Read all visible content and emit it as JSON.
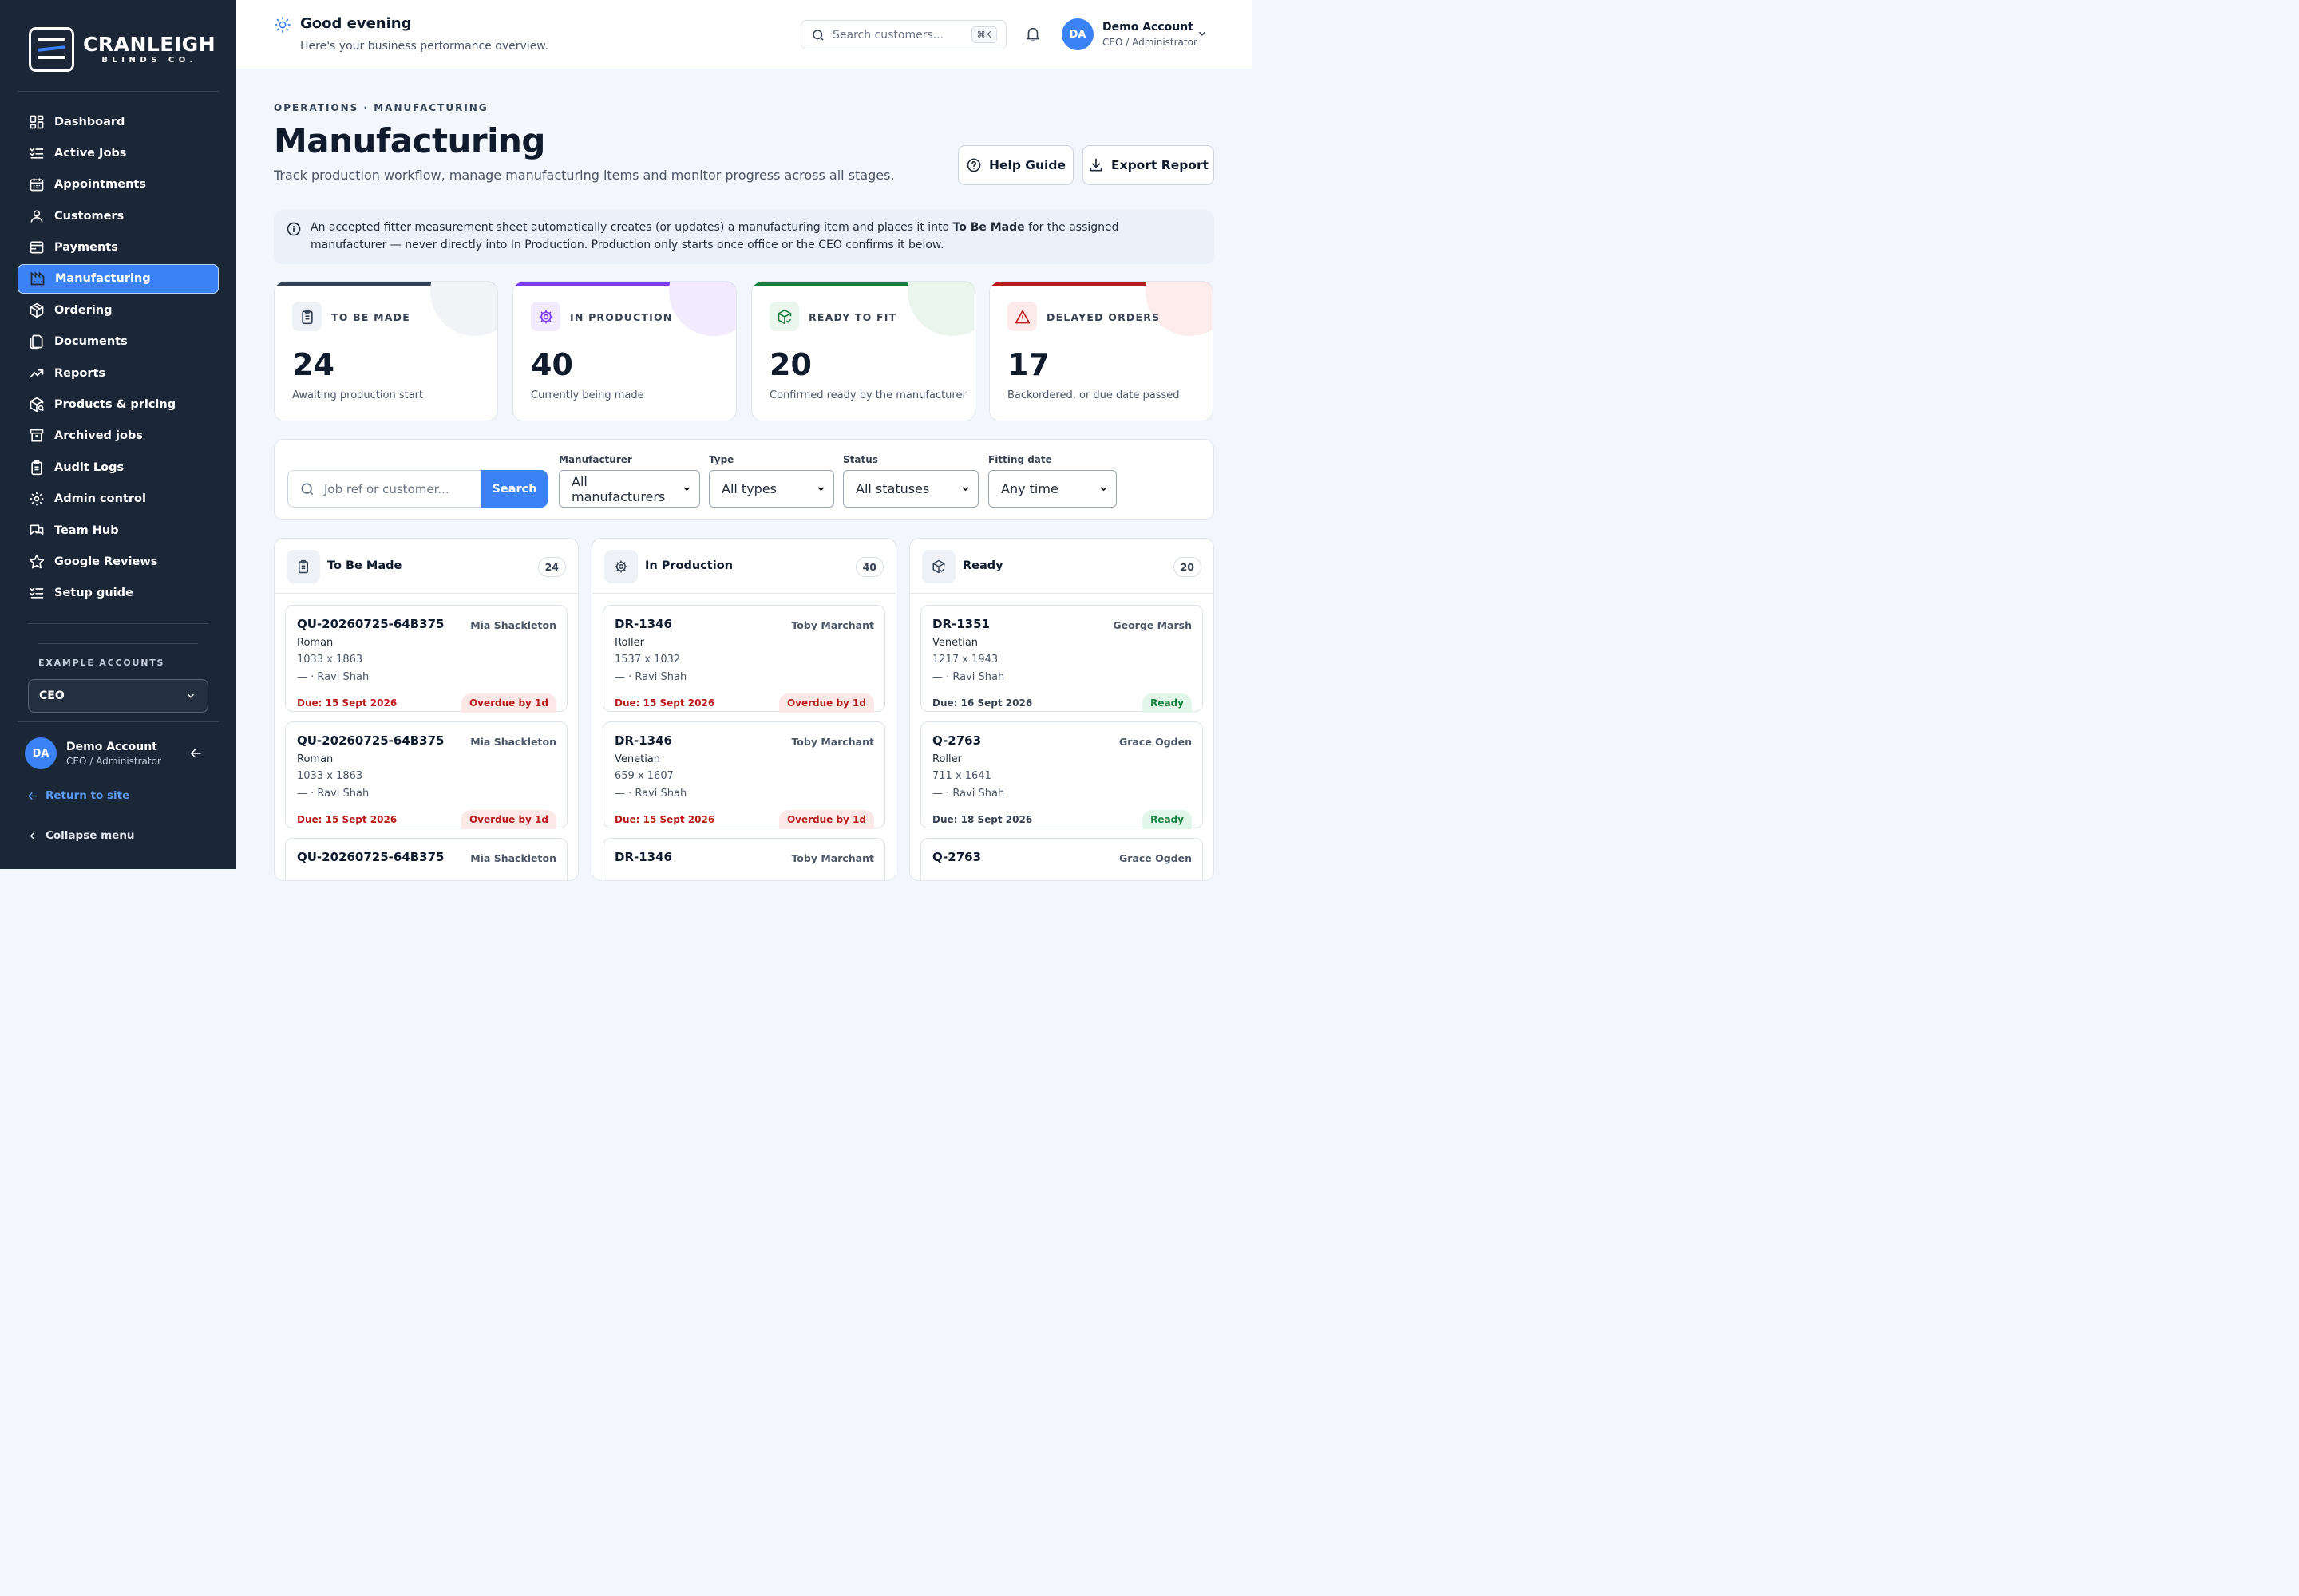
{
  "brand": {
    "name": "CRANLEIGH",
    "sub": "BLINDS CO."
  },
  "sidebar": {
    "items": [
      {
        "label": "Dashboard",
        "icon": "dashboard-icon"
      },
      {
        "label": "Active Jobs",
        "icon": "list-check-icon"
      },
      {
        "label": "Appointments",
        "icon": "calendar-icon"
      },
      {
        "label": "Customers",
        "icon": "user-icon"
      },
      {
        "label": "Payments",
        "icon": "wallet-icon"
      },
      {
        "label": "Manufacturing",
        "icon": "factory-icon",
        "active": true
      },
      {
        "label": "Ordering",
        "icon": "package-icon"
      },
      {
        "label": "Documents",
        "icon": "documents-icon"
      },
      {
        "label": "Reports",
        "icon": "trend-icon"
      },
      {
        "label": "Products & pricing",
        "icon": "package-search-icon"
      },
      {
        "label": "Archived jobs",
        "icon": "archive-icon"
      },
      {
        "label": "Audit Logs",
        "icon": "clipboard-icon"
      },
      {
        "label": "Admin control",
        "icon": "gear-icon"
      },
      {
        "label": "Team Hub",
        "icon": "chat-icon"
      },
      {
        "label": "Google Reviews",
        "icon": "star-icon"
      },
      {
        "label": "Setup guide",
        "icon": "list-check-icon"
      }
    ],
    "example_label": "EXAMPLE ACCOUNTS",
    "example_value": "CEO",
    "user": {
      "initials": "DA",
      "name": "Demo Account",
      "role": "CEO / Administrator"
    },
    "return_label": "Return to site",
    "collapse_label": "Collapse menu"
  },
  "topbar": {
    "greeting": "Good evening",
    "subtitle": "Here's your business performance overview.",
    "search_placeholder": "Search customers...",
    "shortcut": "⌘K",
    "user": {
      "initials": "DA",
      "name": "Demo Account",
      "role": "CEO / Administrator"
    }
  },
  "page": {
    "eyebrow": "OPERATIONS · MANUFACTURING",
    "title": "Manufacturing",
    "subtitle": "Track production workflow, manage manufacturing items and monitor progress across all stages.",
    "help_label": "Help Guide",
    "export_label": "Export Report",
    "info_pre": "An accepted fitter measurement sheet automatically creates (or updates) a manufacturing item and places it into ",
    "info_bold": "To Be Made",
    "info_post": " for the assigned manufacturer — never directly into In Production. Production only starts once office or the CEO confirms it below."
  },
  "stats": [
    {
      "label": "TO BE MADE",
      "value": "24",
      "desc": "Awaiting production start",
      "color": "#334155"
    },
    {
      "label": "IN PRODUCTION",
      "value": "40",
      "desc": "Currently being made",
      "color": "#7c3aed"
    },
    {
      "label": "READY TO FIT",
      "value": "20",
      "desc": "Confirmed ready by the manufacturer",
      "color": "#15803d"
    },
    {
      "label": "DELAYED ORDERS",
      "value": "17",
      "desc": "Backordered, or due date passed",
      "color": "#b91c1c"
    }
  ],
  "filters": {
    "search_placeholder": "Job ref or customer...",
    "search_button": "Search",
    "manufacturer": {
      "label": "Manufacturer",
      "value": "All manufacturers"
    },
    "type": {
      "label": "Type",
      "value": "All types"
    },
    "status": {
      "label": "Status",
      "value": "All statuses"
    },
    "fitting": {
      "label": "Fitting date",
      "value": "Any time"
    }
  },
  "columns": [
    {
      "title": "To Be Made",
      "count": "24",
      "cards": [
        {
          "ref": "QU-20260725-64B375",
          "customer": "Mia Shackleton",
          "type": "Roman",
          "dims": "1033 x 1863",
          "fitter": "— · Ravi Shah",
          "due": "Due: 15 Sept 2026",
          "badge": "Overdue by 1d",
          "status": "over"
        },
        {
          "ref": "QU-20260725-64B375",
          "customer": "Mia Shackleton",
          "type": "Roman",
          "dims": "1033 x 1863",
          "fitter": "— · Ravi Shah",
          "due": "Due: 15 Sept 2026",
          "badge": "Overdue by 1d",
          "status": "over"
        },
        {
          "ref": "QU-20260725-64B375",
          "customer": "Mia Shackleton"
        }
      ]
    },
    {
      "title": "In Production",
      "count": "40",
      "cards": [
        {
          "ref": "DR-1346",
          "customer": "Toby Marchant",
          "type": "Roller",
          "dims": "1537 x 1032",
          "fitter": "— · Ravi Shah",
          "due": "Due: 15 Sept 2026",
          "badge": "Overdue by 1d",
          "status": "over"
        },
        {
          "ref": "DR-1346",
          "customer": "Toby Marchant",
          "type": "Venetian",
          "dims": "659 x 1607",
          "fitter": "— · Ravi Shah",
          "due": "Due: 15 Sept 2026",
          "badge": "Overdue by 1d",
          "status": "over"
        },
        {
          "ref": "DR-1346",
          "customer": "Toby Marchant"
        }
      ]
    },
    {
      "title": "Ready",
      "count": "20",
      "cards": [
        {
          "ref": "DR-1351",
          "customer": "George Marsh",
          "type": "Venetian",
          "dims": "1217 x 1943",
          "fitter": "— · Ravi Shah",
          "due": "Due: 16 Sept 2026",
          "badge": "Ready",
          "status": "ready"
        },
        {
          "ref": "Q-2763",
          "customer": "Grace Ogden",
          "type": "Roller",
          "dims": "711 x 1641",
          "fitter": "— · Ravi Shah",
          "due": "Due: 18 Sept 2026",
          "badge": "Ready",
          "status": "ready"
        },
        {
          "ref": "Q-2763",
          "customer": "Grace Ogden"
        }
      ]
    }
  ]
}
